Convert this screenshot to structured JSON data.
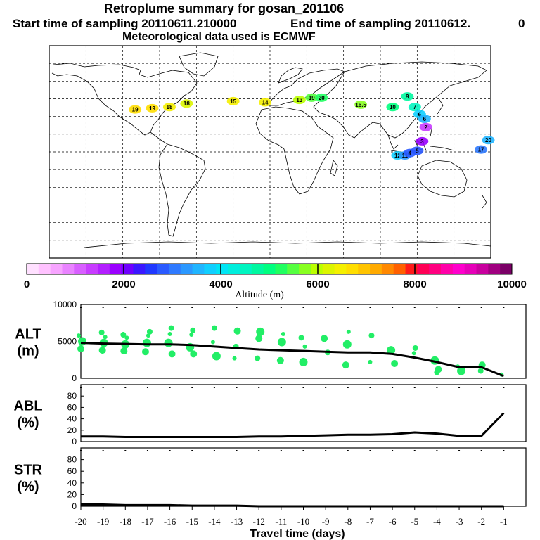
{
  "header": {
    "title": "Retroplume summary for gosan_201106",
    "start_label": "Start time of sampling 20110611.210000",
    "end_label": "End time of sampling 20110612.",
    "end_suffix": "0",
    "meteo_label": "Meteorological data used is ECMWF"
  },
  "map": {
    "labels": [
      {
        "text": "19",
        "lon": -110,
        "lat": 36,
        "alt": 6600
      },
      {
        "text": "19",
        "lon": -96,
        "lat": 37,
        "alt": 6600
      },
      {
        "text": "18",
        "lon": -82,
        "lat": 38,
        "alt": 6400
      },
      {
        "text": "18",
        "lon": -68,
        "lat": 41,
        "alt": 6200
      },
      {
        "text": "15",
        "lon": -30,
        "lat": 43,
        "alt": 6500
      },
      {
        "text": "14",
        "lon": -4,
        "lat": 42,
        "alt": 6500
      },
      {
        "text": "13",
        "lon": 24,
        "lat": 44,
        "alt": 5900
      },
      {
        "text": "19",
        "lon": 34,
        "lat": 46,
        "alt": 5500
      },
      {
        "text": "20",
        "lon": 42,
        "lat": 46,
        "alt": 5300
      },
      {
        "text": "16.5",
        "lon": 74,
        "lat": 40,
        "alt": 5800
      },
      {
        "text": "10",
        "lon": 100,
        "lat": 38,
        "alt": 5000
      },
      {
        "text": "9",
        "lon": 112,
        "lat": 47,
        "alt": 4800
      },
      {
        "text": "7",
        "lon": 118,
        "lat": 38,
        "alt": 4400
      },
      {
        "text": "6",
        "lon": 122,
        "lat": 32,
        "alt": 3900
      },
      {
        "text": "6",
        "lon": 126,
        "lat": 28,
        "alt": 3600
      },
      {
        "text": "12",
        "lon": 104,
        "lat": -3,
        "alt": 3800
      },
      {
        "text": "11",
        "lon": 110,
        "lat": -3,
        "alt": 3400
      },
      {
        "text": "4",
        "lon": 114,
        "lat": -1,
        "alt": 2900
      },
      {
        "text": "5",
        "lon": 120,
        "lat": 1,
        "alt": 2700
      },
      {
        "text": "3",
        "lon": 124,
        "lat": 9,
        "alt": 1800
      },
      {
        "text": "2",
        "lon": 127,
        "lat": 21,
        "alt": 1300
      },
      {
        "text": "17",
        "lon": 172,
        "lat": 2,
        "alt": 3000
      },
      {
        "text": "20",
        "lon": 178,
        "lat": 10,
        "alt": 3600
      }
    ]
  },
  "colorbar": {
    "label": "Altitude (m)",
    "ticks": [
      "0",
      "2000",
      "4000",
      "6000",
      "8000",
      "10000"
    ],
    "colors": [
      "#ffe0ff",
      "#ffc2ff",
      "#f7a4ff",
      "#e983ff",
      "#d85fff",
      "#c83cff",
      "#b31fff",
      "#9a00ff",
      "#6f00ff",
      "#3a17ff",
      "#2038ff",
      "#2a5aff",
      "#2f7aff",
      "#2b98ff",
      "#20b5ff",
      "#10cfff",
      "#00e5f5",
      "#00eedd",
      "#00f5c0",
      "#00f8a0",
      "#00ff80",
      "#20ff60",
      "#55ff40",
      "#88ff20",
      "#bbff00",
      "#dcf500",
      "#f5f000",
      "#ffde00",
      "#ffc400",
      "#ffaa00",
      "#ff8800",
      "#ff6000",
      "#ff1a1a",
      "#ff0055",
      "#ff0080",
      "#ff00a8",
      "#ff00cc",
      "#e600b8",
      "#c8009e",
      "#a00080",
      "#7a0066"
    ]
  },
  "chart_data": [
    {
      "type": "line",
      "name": "ALT",
      "ylabel": "ALT\n(m)",
      "ylabel_lines": [
        "ALT",
        "(m)"
      ],
      "xlabel": "Travel time (days)",
      "x_ticks": [
        "-20",
        "-19",
        "-18",
        "-17",
        "-16",
        "-15",
        "-14",
        "-13",
        "-12",
        "-11",
        "-10",
        "-9",
        "-8",
        "-7",
        "-6",
        "-5",
        "-4",
        "-3",
        "-2",
        "-1"
      ],
      "xlim": [
        -20,
        0
      ],
      "ylim": [
        0,
        10000
      ],
      "y_ticks": [
        "10000",
        "5000",
        "0"
      ],
      "line": {
        "x": [
          -20,
          -19,
          -18,
          -17,
          -16,
          -15,
          -14,
          -13,
          -12,
          -11,
          -10,
          -9,
          -8,
          -7,
          -6,
          -5,
          -4,
          -3,
          -2,
          -1
        ],
        "y": [
          4800,
          4700,
          4650,
          4600,
          4600,
          4500,
          4300,
          4100,
          3900,
          3800,
          3700,
          3600,
          3500,
          3500,
          3300,
          2800,
          2200,
          1500,
          1500,
          300
        ]
      },
      "scatter": {
        "x": [
          -20,
          -20,
          -20,
          -19,
          -19,
          -19,
          -19,
          -18,
          -18,
          -18,
          -18,
          -17,
          -17,
          -17,
          -17,
          -16,
          -16,
          -16,
          -16,
          -15,
          -15,
          -15,
          -15,
          -14,
          -14,
          -14,
          -13,
          -13,
          -13,
          -12,
          -12,
          -12,
          -11,
          -11,
          -11,
          -10,
          -10,
          -10,
          -9,
          -9,
          -8,
          -8,
          -8,
          -7,
          -7,
          -6,
          -6,
          -5,
          -5,
          -4,
          -4,
          -4,
          -3,
          -3,
          -2,
          -2,
          -1
        ],
        "y": [
          5800,
          5000,
          4000,
          6200,
          5600,
          4800,
          3800,
          5900,
          5500,
          4600,
          3700,
          6300,
          5800,
          4800,
          3600,
          6800,
          6000,
          4800,
          3300,
          6500,
          5900,
          4200,
          3300,
          6800,
          4900,
          3000,
          6400,
          4300,
          2700,
          6300,
          5400,
          2700,
          6000,
          4900,
          2400,
          5500,
          4300,
          2200,
          5400,
          3500,
          6300,
          4600,
          1800,
          5800,
          2200,
          3800,
          2000,
          4100,
          3400,
          2400,
          1200,
          800,
          1600,
          1000,
          1800,
          1000,
          500
        ]
      },
      "series_colors": {
        "line": "#000000",
        "points": "#22ee66"
      }
    },
    {
      "type": "line",
      "name": "ABL",
      "ylabel": "ABL\n(%)",
      "ylabel_lines": [
        "ABL",
        "(%)"
      ],
      "xlim": [
        -20,
        0
      ],
      "ylim": [
        0,
        100
      ],
      "y_ticks": [
        "80",
        "60",
        "40",
        "20",
        "0"
      ],
      "line": {
        "x": [
          -20,
          -19,
          -18,
          -17,
          -16,
          -15,
          -14,
          -13,
          -12,
          -11,
          -10,
          -9,
          -8,
          -7,
          -6,
          -5,
          -4,
          -3,
          -2,
          -1
        ],
        "y": [
          9,
          9,
          8,
          8,
          8,
          8,
          8,
          8,
          9,
          9,
          10,
          11,
          12,
          12,
          13,
          16,
          14,
          10,
          10,
          50
        ]
      }
    },
    {
      "type": "line",
      "name": "STR",
      "ylabel": "STR\n(%)",
      "ylabel_lines": [
        "STR",
        "(%)"
      ],
      "xlim": [
        -20,
        0
      ],
      "ylim": [
        0,
        100
      ],
      "y_ticks": [
        "80",
        "60",
        "40",
        "20",
        "0"
      ],
      "line": {
        "x": [
          -20,
          -19,
          -18,
          -17,
          -16,
          -15,
          -14,
          -13,
          -12,
          -11,
          -10,
          -9,
          -8,
          -7,
          -6,
          -5,
          -4,
          -3,
          -2,
          -1
        ],
        "y": [
          3,
          3,
          2,
          2,
          2,
          1,
          1,
          1,
          0,
          0,
          0,
          0,
          0,
          0,
          0,
          0,
          0,
          0,
          0,
          0
        ]
      }
    }
  ]
}
